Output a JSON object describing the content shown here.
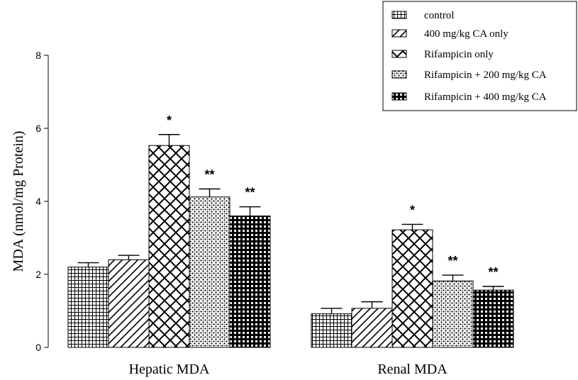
{
  "chart_data": {
    "type": "bar",
    "title": "",
    "xlabel": "",
    "ylabel": "MDA (nmol/mg Protein)",
    "ylim": [
      0,
      8
    ],
    "yticks": [
      "0",
      "2",
      "4",
      "6",
      "8"
    ],
    "categories": [
      "Hepatic MDA",
      "Renal MDA"
    ],
    "legend_position": "top-right",
    "series": [
      {
        "name": "control",
        "values": [
          2.2,
          0.92
        ],
        "errors": [
          0.12,
          0.15
        ],
        "significance": [
          "",
          ""
        ],
        "pattern": "grid"
      },
      {
        "name": "400 mg/kg CA only",
        "values": [
          2.4,
          1.07
        ],
        "errors": [
          0.12,
          0.18
        ],
        "significance": [
          "",
          ""
        ],
        "pattern": "diagonal"
      },
      {
        "name": "Rifampicin only",
        "values": [
          5.53,
          3.22
        ],
        "errors": [
          0.3,
          0.15
        ],
        "significance": [
          "*",
          "*"
        ],
        "pattern": "crosshatch"
      },
      {
        "name": "Rifampicin + 200 mg/kg CA",
        "values": [
          4.12,
          1.82
        ],
        "errors": [
          0.22,
          0.16
        ],
        "significance": [
          "**",
          "**"
        ],
        "pattern": "dots"
      },
      {
        "name": "Rifampicin + 400 mg/kg CA",
        "values": [
          3.6,
          1.57
        ],
        "errors": [
          0.25,
          0.1
        ],
        "significance": [
          "**",
          "**"
        ],
        "pattern": "checker"
      }
    ]
  }
}
